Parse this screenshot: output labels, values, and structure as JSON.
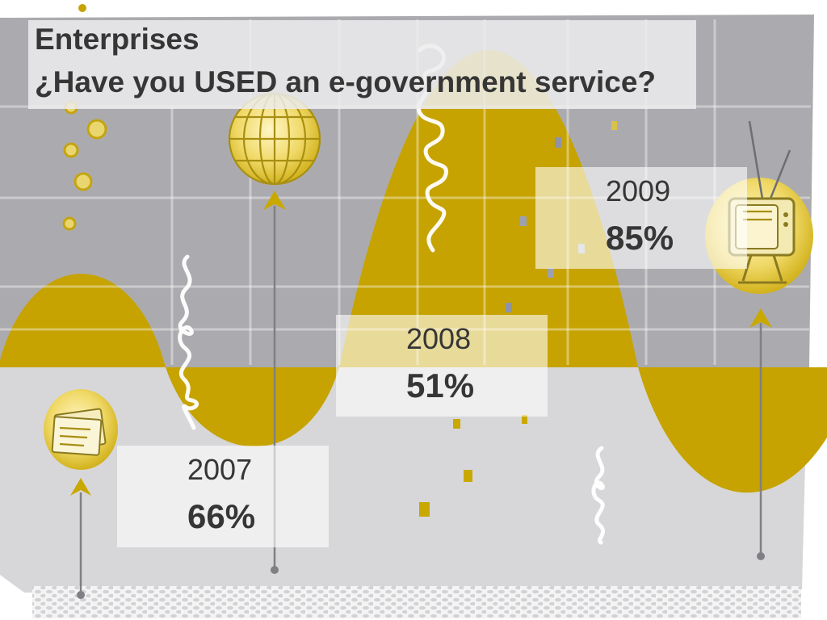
{
  "slide": {
    "title": "Enterprises",
    "question": "¿Have you USED an e-government service?"
  },
  "results": [
    {
      "year": "2007",
      "value": "66%"
    },
    {
      "year": "2008",
      "value": "51%"
    },
    {
      "year": "2009",
      "value": "85%"
    }
  ],
  "colors": {
    "gold": "#C6A300",
    "text": "#363636",
    "background_upper": "#ABABAF",
    "background_lower": "#D7D7D9"
  },
  "decor": {
    "icons": [
      "document-balloon-icon",
      "globe-balloon-icon",
      "tv-balloon-icon",
      "streamer-icon",
      "confetti-icon"
    ]
  }
}
